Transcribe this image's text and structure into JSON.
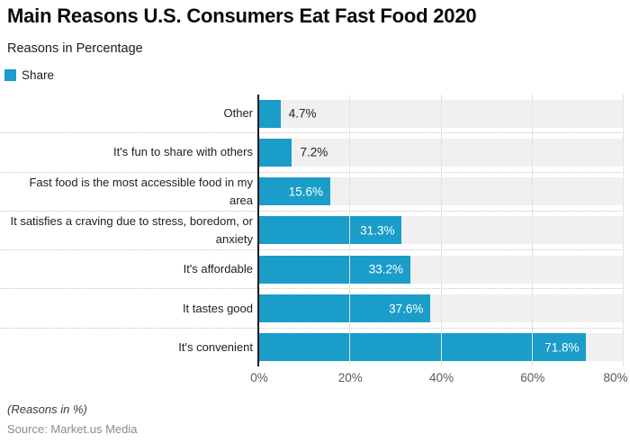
{
  "header": {
    "title": "Main Reasons U.S. Consumers Eat Fast Food 2020",
    "subtitle": "Reasons in Percentage"
  },
  "legend": {
    "label": "Share",
    "swatch_color": "#1B9DC9"
  },
  "chart_data": {
    "type": "bar",
    "orientation": "horizontal",
    "title": "Main Reasons U.S. Consumers Eat Fast Food 2020",
    "subtitle": "Reasons in Percentage",
    "series_name": "Share",
    "categories": [
      "Other",
      "It's fun to share with others",
      "Fast food is the most accessible food in my area",
      "It satisfies a craving due to stress, boredom, or anxiety",
      "It's affordable",
      "It tastes good",
      "It's convenient"
    ],
    "values": [
      4.7,
      7.2,
      15.6,
      31.3,
      33.2,
      37.6,
      71.8
    ],
    "value_labels": [
      "4.7%",
      "7.2%",
      "15.6%",
      "31.3%",
      "33.2%",
      "37.6%",
      "71.8%"
    ],
    "xlabel": "",
    "ylabel": "",
    "xlim": [
      0,
      80
    ],
    "x_ticks": [
      0,
      20,
      40,
      60,
      80
    ],
    "x_tick_labels": [
      "0%",
      "20%",
      "40%",
      "60%",
      "80%"
    ],
    "grid": "vertical solid gridlines at ticks; dotted horizontal row separators; gray row tracks",
    "legend_position": "top-left",
    "bar_color": "#1B9DC9",
    "track_color": "#f0f0f0"
  },
  "footer": {
    "note": "(Reasons in %)",
    "source": "Source: Market.us Media"
  }
}
